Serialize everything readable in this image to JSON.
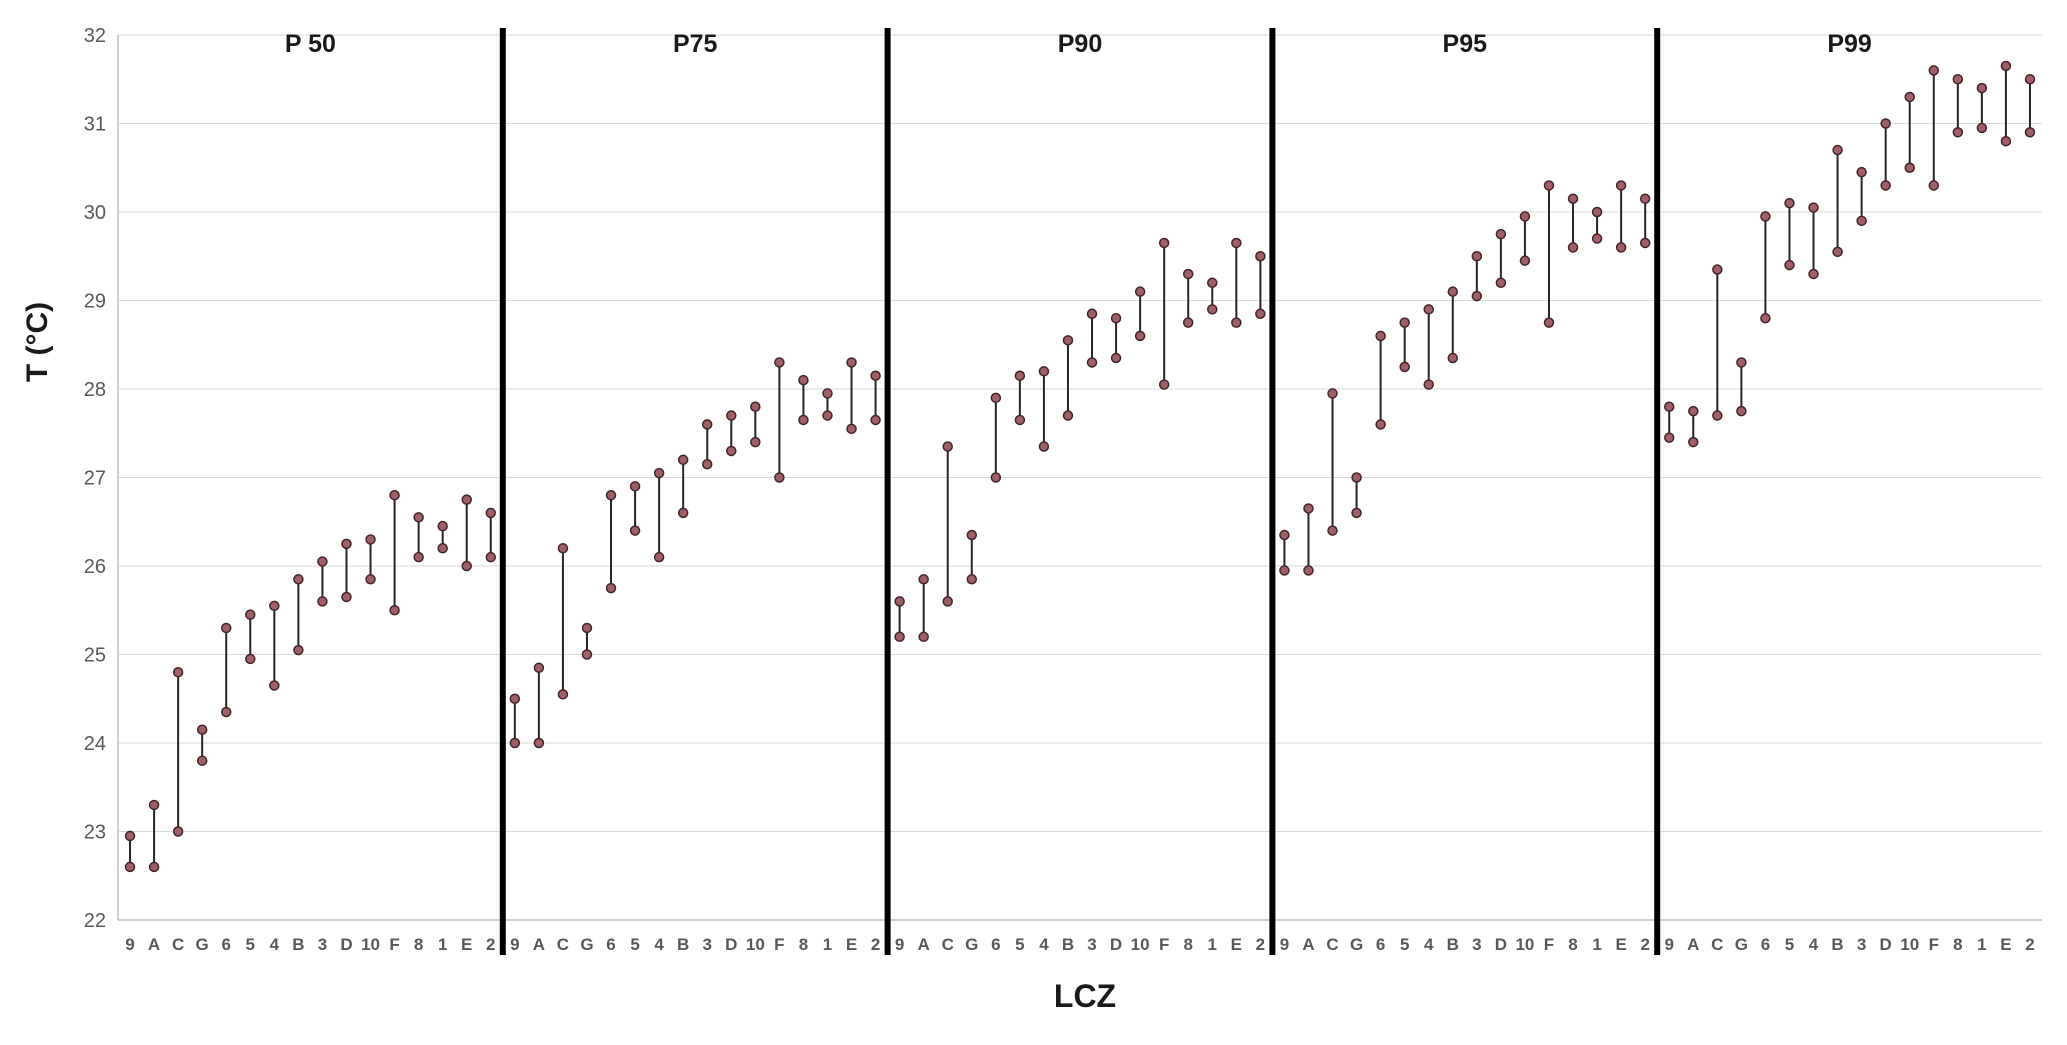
{
  "chart_data": {
    "type": "range",
    "title": "",
    "xlabel": "LCZ",
    "ylabel": "T (°C)",
    "ylim": [
      22,
      32
    ],
    "ytick_step": 1,
    "grid": true,
    "legend": "none",
    "categories": [
      "9",
      "A",
      "C",
      "G",
      "6",
      "5",
      "4",
      "B",
      "3",
      "D",
      "10",
      "F",
      "8",
      "1",
      "E",
      "2"
    ],
    "panels": [
      {
        "name": "P 50",
        "ranges": [
          [
            22.6,
            22.95
          ],
          [
            22.6,
            23.3
          ],
          [
            23.0,
            24.8
          ],
          [
            23.8,
            24.15
          ],
          [
            24.35,
            25.3
          ],
          [
            24.95,
            25.45
          ],
          [
            24.65,
            25.55
          ],
          [
            25.05,
            25.85
          ],
          [
            25.6,
            26.05
          ],
          [
            25.65,
            26.25
          ],
          [
            25.85,
            26.3
          ],
          [
            25.5,
            26.8
          ],
          [
            26.1,
            26.55
          ],
          [
            26.2,
            26.45
          ],
          [
            26.0,
            26.75
          ],
          [
            26.1,
            26.6
          ]
        ]
      },
      {
        "name": "P75",
        "ranges": [
          [
            24.0,
            24.5
          ],
          [
            24.0,
            24.85
          ],
          [
            24.55,
            26.2
          ],
          [
            25.0,
            25.3
          ],
          [
            25.75,
            26.8
          ],
          [
            26.4,
            26.9
          ],
          [
            26.1,
            27.05
          ],
          [
            26.6,
            27.2
          ],
          [
            27.15,
            27.6
          ],
          [
            27.3,
            27.7
          ],
          [
            27.4,
            27.8
          ],
          [
            27.0,
            28.3
          ],
          [
            27.65,
            28.1
          ],
          [
            27.7,
            27.95
          ],
          [
            27.55,
            28.3
          ],
          [
            27.65,
            28.15
          ]
        ]
      },
      {
        "name": "P90",
        "ranges": [
          [
            25.2,
            25.6
          ],
          [
            25.2,
            25.85
          ],
          [
            25.6,
            27.35
          ],
          [
            25.85,
            26.35
          ],
          [
            27.0,
            27.9
          ],
          [
            27.65,
            28.15
          ],
          [
            27.35,
            28.2
          ],
          [
            27.7,
            28.55
          ],
          [
            28.3,
            28.85
          ],
          [
            28.35,
            28.8
          ],
          [
            28.6,
            29.1
          ],
          [
            28.05,
            29.65
          ],
          [
            28.75,
            29.3
          ],
          [
            28.9,
            29.2
          ],
          [
            28.75,
            29.65
          ],
          [
            28.85,
            29.5
          ]
        ]
      },
      {
        "name": "P95",
        "ranges": [
          [
            25.95,
            26.35
          ],
          [
            25.95,
            26.65
          ],
          [
            26.4,
            27.95
          ],
          [
            26.6,
            27.0
          ],
          [
            27.6,
            28.6
          ],
          [
            28.25,
            28.75
          ],
          [
            28.05,
            28.9
          ],
          [
            28.35,
            29.1
          ],
          [
            29.05,
            29.5
          ],
          [
            29.2,
            29.75
          ],
          [
            29.45,
            29.95
          ],
          [
            28.75,
            30.3
          ],
          [
            29.6,
            30.15
          ],
          [
            29.7,
            30.0
          ],
          [
            29.6,
            30.3
          ],
          [
            29.65,
            30.15
          ]
        ]
      },
      {
        "name": "P99",
        "ranges": [
          [
            27.45,
            27.8
          ],
          [
            27.4,
            27.75
          ],
          [
            27.7,
            29.35
          ],
          [
            27.75,
            28.3
          ],
          [
            28.8,
            29.95
          ],
          [
            29.4,
            30.1
          ],
          [
            29.3,
            30.05
          ],
          [
            29.55,
            30.7
          ],
          [
            29.9,
            30.45
          ],
          [
            30.3,
            31.0
          ],
          [
            30.5,
            31.3
          ],
          [
            30.3,
            31.6
          ],
          [
            30.9,
            31.5
          ],
          [
            30.95,
            31.4
          ],
          [
            30.8,
            31.65
          ],
          [
            30.9,
            31.5
          ]
        ]
      }
    ],
    "colors": {
      "bar": "#262626",
      "dot_fill": "#9c6066",
      "dot_stroke": "#45242b",
      "grid": "#d9d9d9",
      "axis": "#bfbfbf",
      "separator": "#000000",
      "tick_label": "#595959",
      "category_label": "#595959",
      "header": "#1a1a1a"
    }
  }
}
